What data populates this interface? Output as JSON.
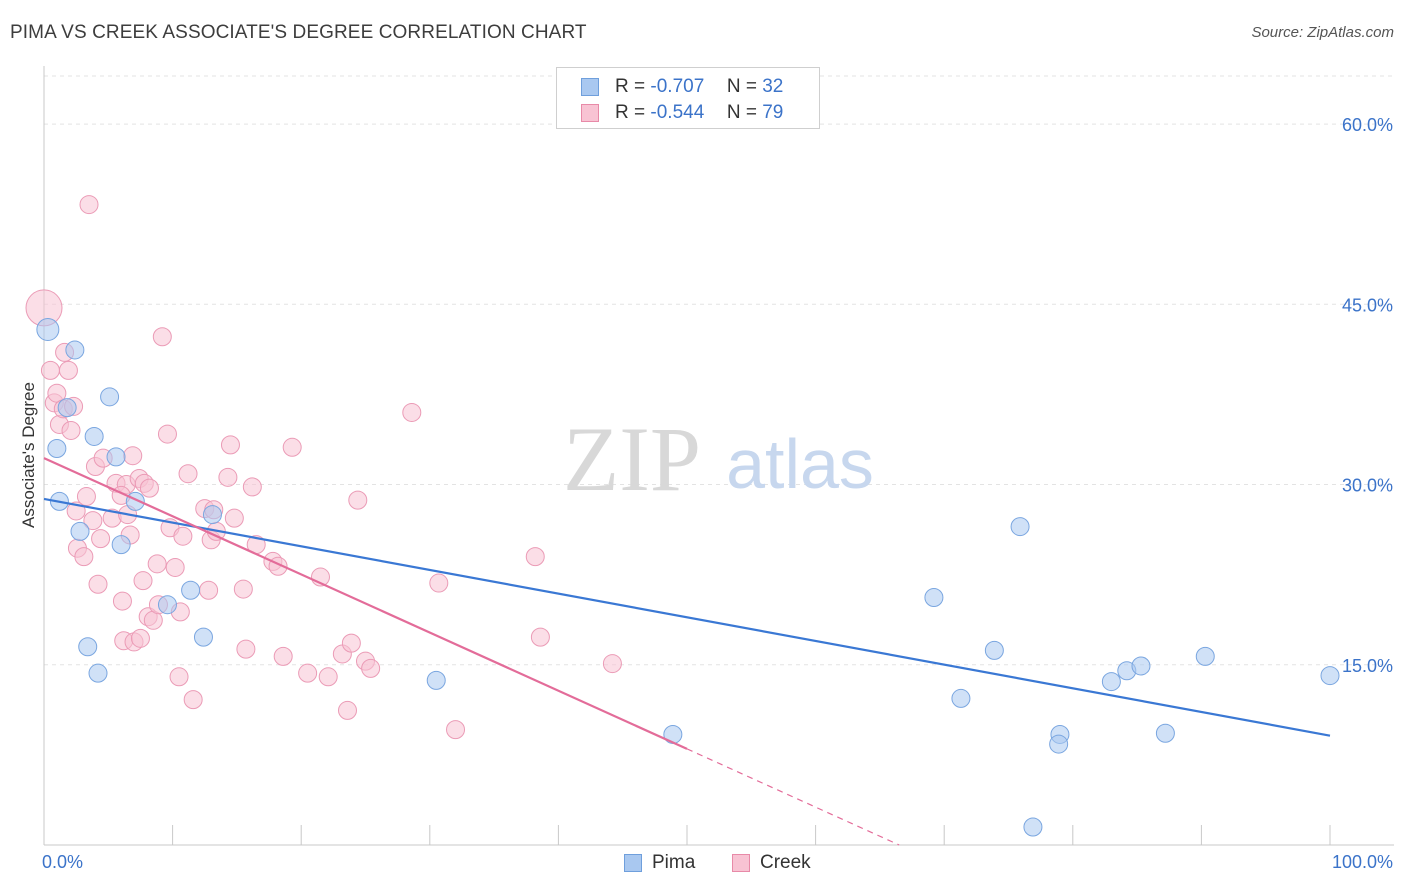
{
  "header": {
    "title": "PIMA VS CREEK ASSOCIATE'S DEGREE CORRELATION CHART",
    "source": "Source: ZipAtlas.com"
  },
  "watermark": {
    "zip": "ZIP",
    "atlas": "atlas"
  },
  "legend": {
    "rows": [
      {
        "r_label": "R =",
        "r_value": "-0.707",
        "n_label": "N =",
        "n_value": "32",
        "color": "#a9c8f0",
        "border": "#6f9fdc"
      },
      {
        "r_label": "R =",
        "r_value": "-0.544",
        "n_label": "N =",
        "n_value": "79",
        "color": "#f8c3d3",
        "border": "#e88aa8"
      }
    ]
  },
  "bottom_legend": [
    {
      "label": "Pima",
      "color": "#a9c8f0",
      "border": "#6f9fdc"
    },
    {
      "label": "Creek",
      "color": "#f8c3d3",
      "border": "#e88aa8"
    }
  ],
  "chart_data": {
    "type": "scatter",
    "title": "PIMA VS CREEK ASSOCIATE'S DEGREE CORRELATION CHART",
    "xlabel": "",
    "ylabel": "Associate's Degree",
    "xlim": [
      0,
      100
    ],
    "ylim": [
      0,
      64
    ],
    "x_tick_labels": [
      "0.0%",
      "100.0%"
    ],
    "y_ticks": [
      15,
      30,
      45,
      60
    ],
    "y_tick_labels": [
      "15.0%",
      "30.0%",
      "45.0%",
      "60.0%"
    ],
    "grid": true,
    "colors": {
      "pima": "#3a78d4",
      "creek": "#e36c99",
      "tick_text": "#3b73c9"
    },
    "series": [
      {
        "name": "Pima",
        "color": "#a9c8f0",
        "line_color": "#3a78d4",
        "regression": {
          "x": [
            0,
            100
          ],
          "y": [
            28.8,
            9.1
          ]
        },
        "points": [
          [
            0.3,
            42.9
          ],
          [
            1.0,
            33.0
          ],
          [
            1.2,
            28.6
          ],
          [
            1.8,
            36.4
          ],
          [
            2.4,
            41.2
          ],
          [
            2.8,
            26.1
          ],
          [
            3.4,
            16.5
          ],
          [
            3.9,
            34.0
          ],
          [
            4.2,
            14.3
          ],
          [
            5.1,
            37.3
          ],
          [
            5.6,
            32.3
          ],
          [
            6.0,
            25.0
          ],
          [
            7.1,
            28.6
          ],
          [
            9.6,
            20.0
          ],
          [
            11.4,
            21.2
          ],
          [
            12.4,
            17.3
          ],
          [
            13.1,
            27.5
          ],
          [
            30.5,
            13.7
          ],
          [
            48.9,
            9.2
          ],
          [
            69.2,
            20.6
          ],
          [
            71.3,
            12.2
          ],
          [
            73.9,
            16.2
          ],
          [
            75.9,
            26.5
          ],
          [
            76.9,
            1.5
          ],
          [
            79.0,
            9.2
          ],
          [
            78.9,
            8.4
          ],
          [
            83.0,
            13.6
          ],
          [
            84.2,
            14.5
          ],
          [
            85.3,
            14.9
          ],
          [
            87.2,
            9.3
          ],
          [
            90.3,
            15.7
          ],
          [
            100.0,
            14.1
          ]
        ]
      },
      {
        "name": "Creek",
        "color": "#f8c3d3",
        "line_color": "#e36c99",
        "regression": {
          "x": [
            0,
            50
          ],
          "y": [
            32.2,
            8.0
          ]
        },
        "regression_dashed": {
          "x": [
            50,
            66.5
          ],
          "y": [
            8.0,
            0.0
          ]
        },
        "points": [
          [
            0.0,
            44.7
          ],
          [
            0.5,
            39.5
          ],
          [
            0.8,
            36.8
          ],
          [
            1.0,
            37.6
          ],
          [
            1.2,
            35.0
          ],
          [
            1.5,
            36.3
          ],
          [
            1.6,
            41.0
          ],
          [
            1.9,
            39.5
          ],
          [
            2.1,
            34.5
          ],
          [
            2.3,
            36.5
          ],
          [
            2.5,
            27.8
          ],
          [
            2.6,
            24.7
          ],
          [
            3.1,
            24.0
          ],
          [
            3.3,
            29.0
          ],
          [
            3.5,
            53.3
          ],
          [
            3.8,
            27.0
          ],
          [
            4.0,
            31.5
          ],
          [
            4.2,
            21.7
          ],
          [
            4.4,
            25.5
          ],
          [
            4.6,
            32.2
          ],
          [
            5.3,
            27.2
          ],
          [
            5.6,
            30.1
          ],
          [
            6.1,
            20.3
          ],
          [
            6.2,
            17.0
          ],
          [
            6.4,
            30.0
          ],
          [
            6.5,
            27.5
          ],
          [
            6.7,
            25.8
          ],
          [
            6.9,
            32.4
          ],
          [
            7.0,
            16.9
          ],
          [
            7.4,
            30.5
          ],
          [
            7.7,
            22.0
          ],
          [
            7.8,
            30.1
          ],
          [
            8.1,
            19.0
          ],
          [
            8.2,
            29.7
          ],
          [
            8.5,
            18.7
          ],
          [
            8.8,
            23.4
          ],
          [
            8.9,
            20.0
          ],
          [
            9.2,
            42.3
          ],
          [
            9.6,
            34.2
          ],
          [
            9.8,
            26.4
          ],
          [
            10.2,
            23.1
          ],
          [
            10.5,
            14.0
          ],
          [
            10.6,
            19.4
          ],
          [
            10.8,
            25.7
          ],
          [
            11.2,
            30.9
          ],
          [
            11.6,
            12.1
          ],
          [
            12.5,
            28.0
          ],
          [
            12.8,
            21.2
          ],
          [
            13.0,
            25.4
          ],
          [
            13.4,
            26.1
          ],
          [
            14.3,
            30.6
          ],
          [
            14.5,
            33.3
          ],
          [
            14.8,
            27.2
          ],
          [
            15.5,
            21.3
          ],
          [
            15.7,
            16.3
          ],
          [
            16.2,
            29.8
          ],
          [
            16.5,
            25.0
          ],
          [
            17.8,
            23.6
          ],
          [
            18.2,
            23.2
          ],
          [
            18.6,
            15.7
          ],
          [
            19.3,
            33.1
          ],
          [
            20.5,
            14.3
          ],
          [
            21.5,
            22.3
          ],
          [
            22.1,
            14.0
          ],
          [
            23.2,
            15.9
          ],
          [
            23.6,
            11.2
          ],
          [
            23.9,
            16.8
          ],
          [
            24.4,
            28.7
          ],
          [
            25.0,
            15.3
          ],
          [
            25.4,
            14.7
          ],
          [
            28.6,
            36.0
          ],
          [
            30.7,
            21.8
          ],
          [
            32.0,
            9.6
          ],
          [
            38.2,
            24.0
          ],
          [
            38.6,
            17.3
          ],
          [
            44.2,
            15.1
          ],
          [
            13.2,
            27.9
          ],
          [
            7.5,
            17.2
          ],
          [
            6.0,
            29.1
          ]
        ]
      }
    ]
  }
}
